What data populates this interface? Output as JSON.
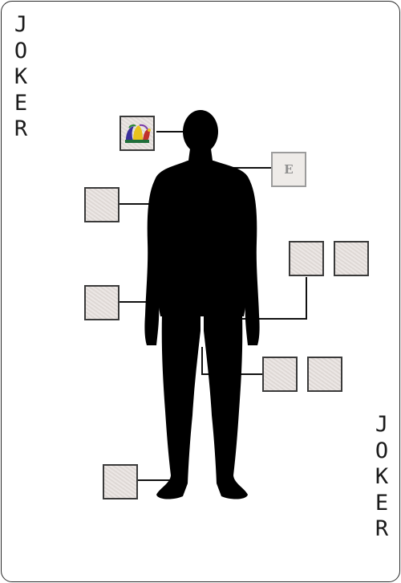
{
  "card": {
    "corner_text": [
      "J",
      "O",
      "K",
      "E",
      "R"
    ]
  },
  "slots": {
    "head": {
      "icon": "jester-hat-icon"
    },
    "neck": {
      "letter": "E"
    },
    "shoulder": {},
    "hand": {},
    "ring_left": {},
    "ring_right": {},
    "leg_left": {},
    "leg_right": {},
    "feet": {}
  },
  "colors": {
    "silhouette": "#000000",
    "slot_fill": "#e5dfdc",
    "slot_border": "#3a3a3a",
    "card_border": "#2a2a2a"
  }
}
